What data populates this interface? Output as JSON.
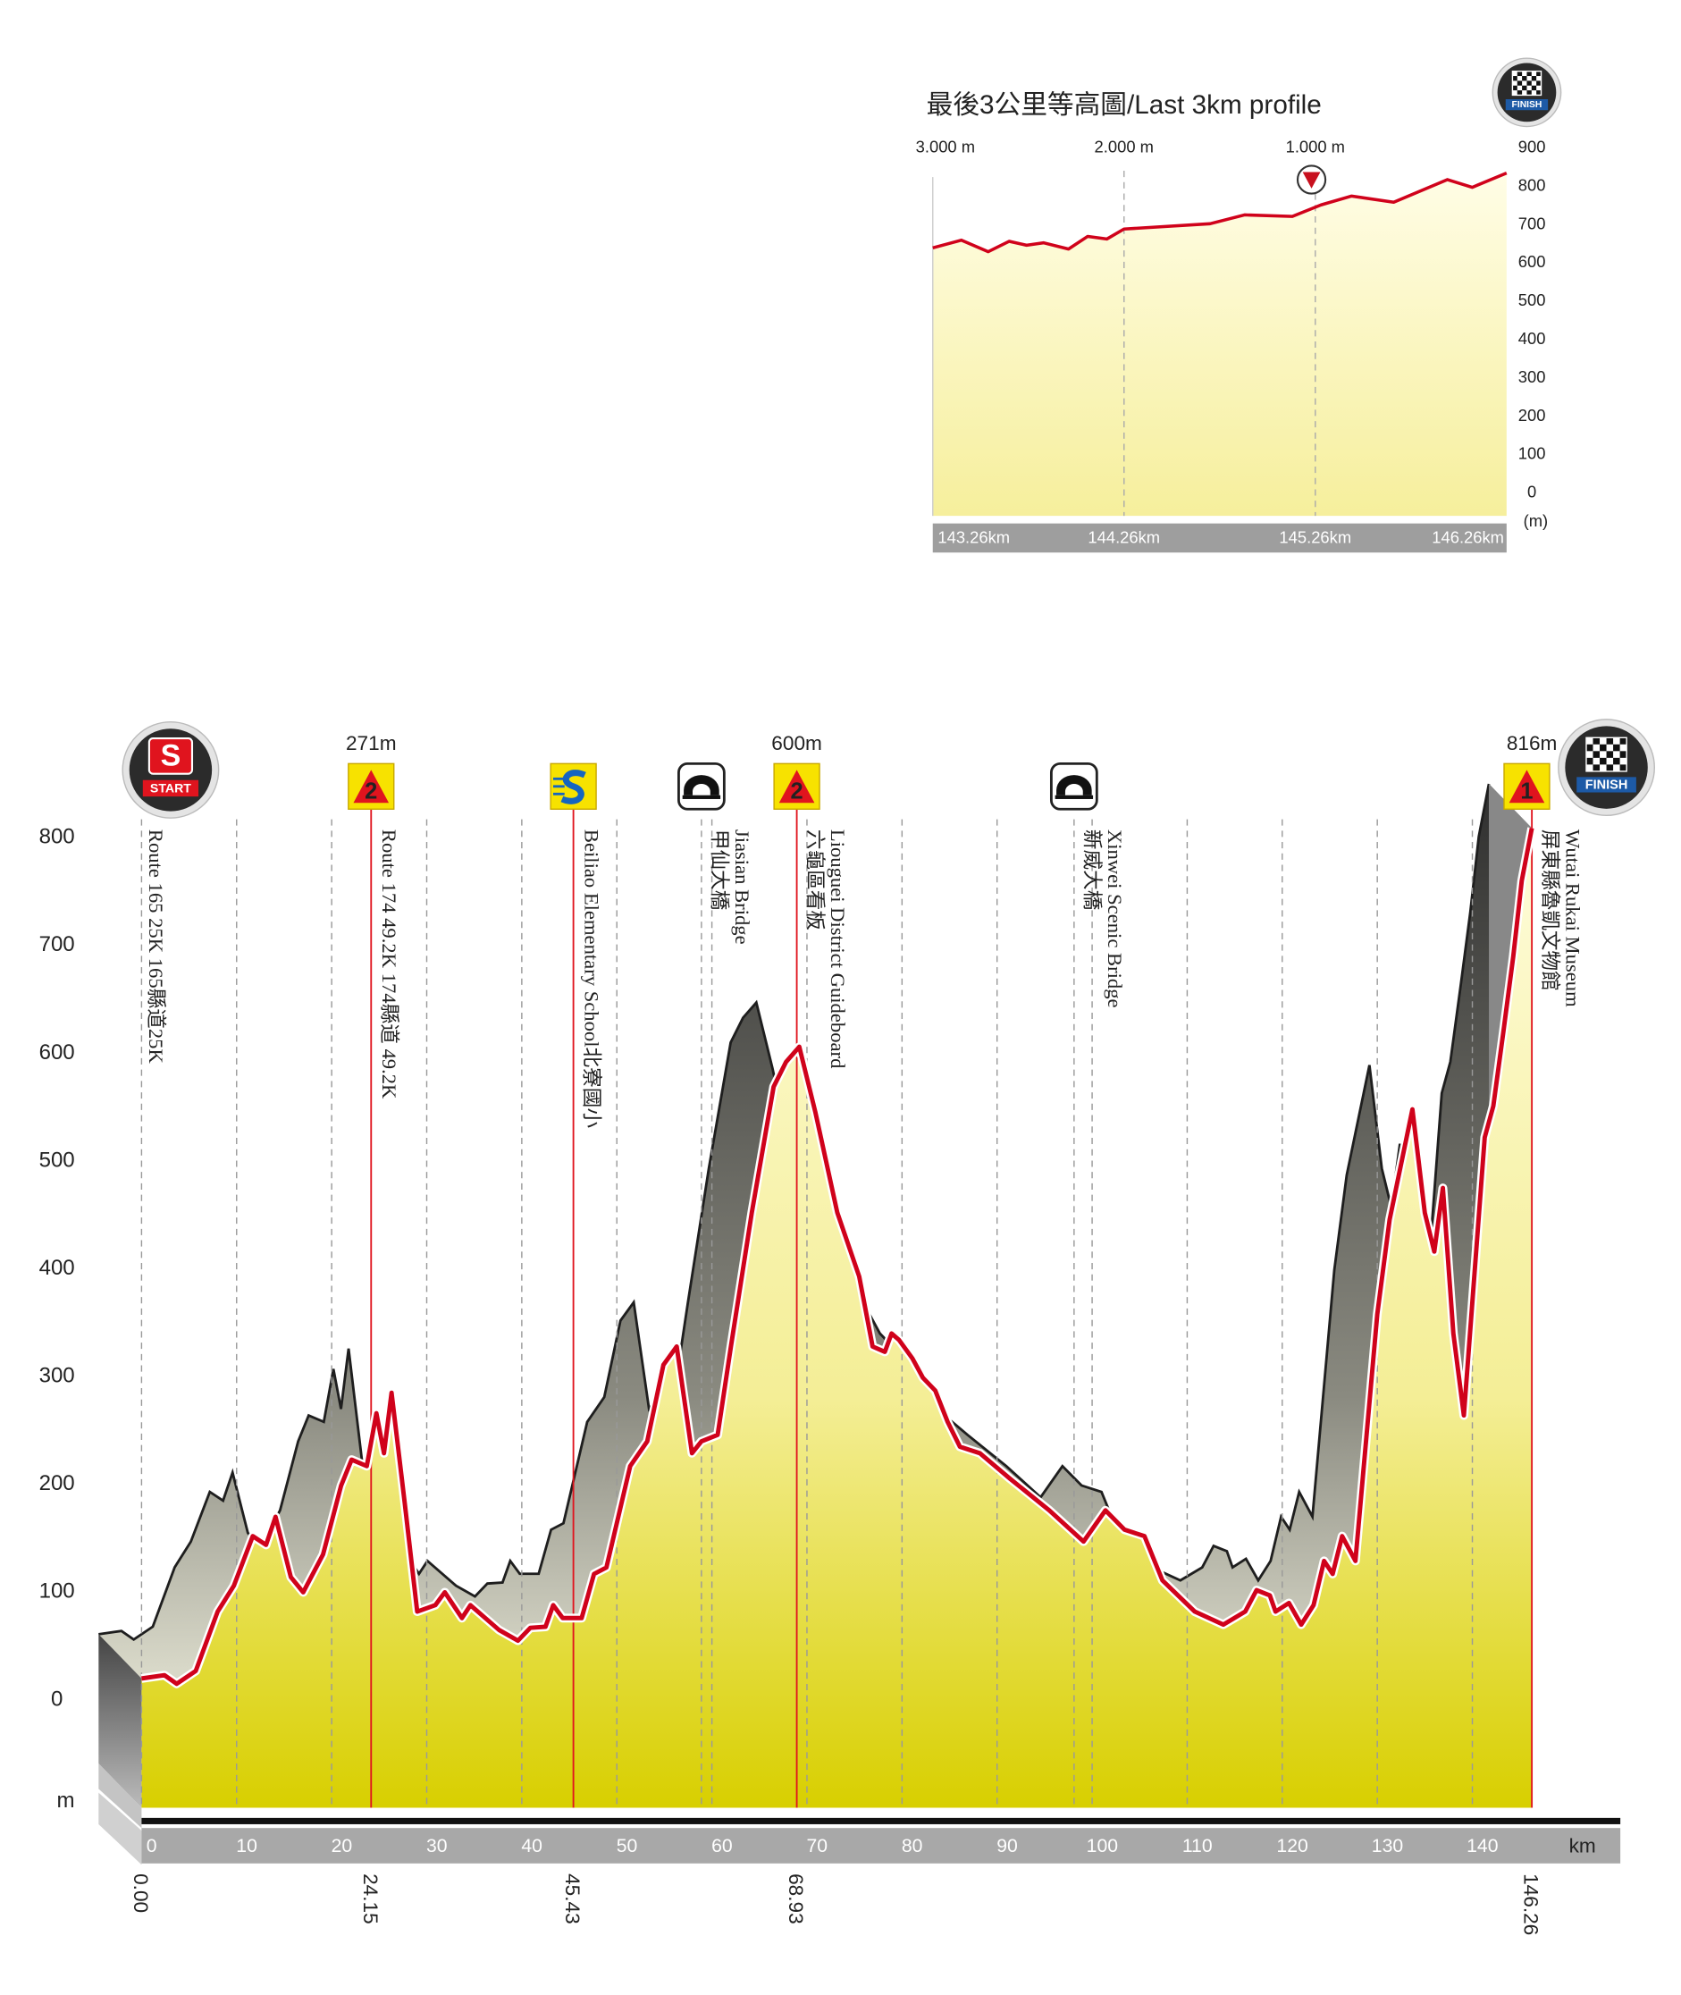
{
  "chart_data": [
    {
      "type": "area",
      "x": [
        0,
        2.4,
        3.7,
        5.7,
        8.0,
        9.7,
        11.7,
        13.1,
        14.1,
        15.7,
        17.0,
        19.1,
        21.0,
        22.1,
        23.7,
        24.7,
        25.5,
        26.3,
        27.7,
        29.0,
        30.9,
        31.9,
        33.7,
        34.6,
        37.6,
        39.6,
        40.9,
        42.5,
        43.3,
        44.3,
        46.3,
        47.6,
        48.9,
        51.4,
        53.2,
        54.9,
        56.3,
        57.9,
        58.9,
        60.6,
        62.0,
        64.2,
        66.5,
        67.8,
        69.2,
        70.9,
        73.2,
        75.5,
        76.9,
        78.2,
        78.9,
        79.7,
        81.1,
        82.2,
        83.5,
        84.8,
        86.1,
        88.2,
        91.4,
        95.5,
        99.1,
        101.4,
        103.4,
        105.5,
        107.4,
        110.8,
        113.8,
        116.1,
        117.3,
        118.7,
        119.3,
        120.7,
        122.0,
        123.3,
        124.4,
        125.3,
        126.3,
        127.7,
        130.0,
        131.3,
        133.7,
        135.0,
        136.0,
        136.9,
        138.0,
        139.1,
        141.3,
        142.2,
        143.3,
        144.3,
        145.2,
        146.26
      ],
      "values": [
        20,
        23,
        15,
        27,
        82,
        106,
        152,
        144,
        170,
        114,
        100,
        135,
        199,
        223,
        217,
        266,
        229,
        285,
        182,
        82,
        88,
        100,
        76,
        88,
        65,
        55,
        67,
        68,
        88,
        76,
        76,
        117,
        123,
        217,
        240,
        311,
        328,
        229,
        240,
        246,
        328,
        452,
        569,
        592,
        606,
        545,
        452,
        393,
        328,
        323,
        340,
        334,
        317,
        299,
        287,
        258,
        235,
        229,
        205,
        176,
        147,
        176,
        158,
        152,
        111,
        82,
        70,
        82,
        102,
        97,
        82,
        90,
        70,
        88,
        129,
        117,
        152,
        129,
        358,
        446,
        548,
        452,
        416,
        475,
        340,
        264,
        522,
        551,
        622,
        690,
        760,
        809
      ],
      "color": "#d0021b",
      "xlim": [
        0,
        146.26
      ],
      "ylim": [
        -100,
        850
      ],
      "xticks": [
        0,
        10,
        20,
        30,
        40,
        50,
        60,
        70,
        80,
        90,
        100,
        110,
        120,
        130,
        140
      ],
      "yticks": [
        0,
        100,
        200,
        300,
        400,
        500,
        600,
        700,
        800
      ],
      "x_unit": "km",
      "y_unit": "m",
      "grid": true,
      "distance_ticks": [
        {
          "value": 0,
          "label": "0.00"
        },
        24.15,
        45.43,
        68.93,
        146.26
      ],
      "start_badge": {
        "letter": "S",
        "label": "START"
      },
      "finish_badge": "FINISH",
      "checkpoints": [
        {
          "km": 0,
          "kind": "start",
          "labels": [
            "Route 165 25K  165縣道25K"
          ]
        },
        {
          "km": 24.15,
          "kind": "kom",
          "category": "2",
          "summit": "271m",
          "labels": [
            "Route 174 49.2K 174縣道 49.2K"
          ]
        },
        {
          "km": 45.43,
          "kind": "sprint",
          "labels": [
            "Beiliao Elementary School北寮國小"
          ]
        },
        {
          "km": 58.9,
          "kind": "bridge",
          "labels": [
            "Jiasian Bridge",
            "甲仙大橋"
          ]
        },
        {
          "km": 68.93,
          "kind": "kom",
          "category": "2",
          "summit": "600m",
          "labels": [
            "Liouguei District Guideboard",
            "六龜區看板"
          ]
        },
        {
          "km": 98.1,
          "kind": "bridge",
          "labels": [
            "Xinwei Scenic Bridge",
            "新威大橋"
          ]
        },
        {
          "km": 146.26,
          "kind": "kom",
          "category": "1",
          "summit": "816m",
          "labels": [
            "Wutai Rukai Museum",
            "屏東縣魯凱文物館"
          ]
        }
      ]
    },
    {
      "type": "area",
      "title": "最後3公里等高圖/Last 3km profile",
      "x": [
        143.26,
        143.41,
        143.55,
        143.66,
        143.75,
        143.84,
        143.97,
        144.07,
        144.17,
        144.26,
        144.71,
        144.89,
        145.14,
        145.29,
        145.45,
        145.67,
        145.95,
        146.08,
        146.26
      ],
      "values": [
        633,
        653,
        623,
        650,
        640,
        646,
        630,
        663,
        656,
        682,
        696,
        719,
        715,
        745,
        768,
        752,
        811,
        791,
        828
      ],
      "color": "#d0021b",
      "xlim": [
        143.26,
        146.26
      ],
      "ylim": [
        0,
        900
      ],
      "yticks": [
        0,
        100,
        200,
        300,
        400,
        500,
        600,
        700,
        800,
        900
      ],
      "y_unit": "(m)",
      "xticks": [
        {
          "value": 143.26,
          "label": "143.26km"
        },
        {
          "value": 144.26,
          "label": "144.26km"
        },
        {
          "value": 145.26,
          "label": "145.26km"
        },
        {
          "value": 146.26,
          "label": "146.26km"
        }
      ],
      "top_ticks": [
        {
          "value": 143.26,
          "label": "3.000 m"
        },
        {
          "value": 144.26,
          "label": "2.000 m"
        },
        {
          "value": 145.26,
          "label": "1.000 m"
        }
      ],
      "finish_badge": "FINISH",
      "grid": true
    }
  ]
}
